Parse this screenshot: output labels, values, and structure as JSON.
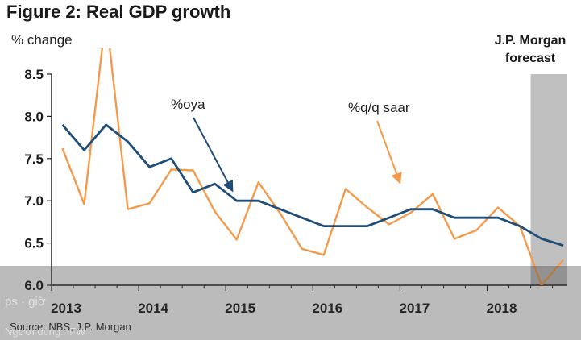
{
  "title": "Figure 2: Real GDP growth",
  "ylabel": "% change",
  "forecast_label": "J.P. Morgan forecast",
  "source": "Source: NBS, J.P. Morgan",
  "overlay_text": "ps · giờ",
  "overlay_text2": "Người dùng: IFW",
  "colors": {
    "oya": "#1f4e79",
    "qoq": "#f39a4c",
    "forecast_band": "#c0c0c0"
  },
  "chart_data": {
    "type": "line",
    "title": "Figure 2: Real GDP growth",
    "ylabel": "% change",
    "xlabel": "",
    "ylim": [
      6.0,
      8.5
    ],
    "yticks": [
      6.0,
      6.5,
      7.0,
      7.5,
      8.0,
      8.5
    ],
    "xlim": [
      2013.0,
      2018.92
    ],
    "xticks": [
      {
        "value": 2013.0,
        "label": "2013"
      },
      {
        "value": 2014.0,
        "label": "2014"
      },
      {
        "value": 2015.0,
        "label": "2015"
      },
      {
        "value": 2016.0,
        "label": "2016"
      },
      {
        "value": 2017.0,
        "label": "2017"
      },
      {
        "value": 2018.0,
        "label": "2018"
      }
    ],
    "forecast_range": [
      2018.5,
      2018.92
    ],
    "grid": false,
    "series": [
      {
        "name": "%oya",
        "annotation": "%oya",
        "x": [
          2013.125,
          2013.375,
          2013.625,
          2013.875,
          2014.125,
          2014.375,
          2014.625,
          2014.875,
          2015.125,
          2015.375,
          2015.625,
          2015.875,
          2016.125,
          2016.375,
          2016.625,
          2016.875,
          2017.125,
          2017.375,
          2017.625,
          2017.875,
          2018.125,
          2018.375,
          2018.625,
          2018.875
        ],
        "y": [
          7.9,
          7.6,
          7.9,
          7.7,
          7.4,
          7.5,
          7.1,
          7.2,
          7.0,
          7.0,
          6.9,
          6.8,
          6.7,
          6.7,
          6.7,
          6.8,
          6.9,
          6.9,
          6.8,
          6.8,
          6.8,
          6.7,
          6.55,
          6.47
        ]
      },
      {
        "name": "%q/q saar",
        "annotation": "%q/q saar",
        "x": [
          2013.125,
          2013.375,
          2013.625,
          2013.875,
          2014.125,
          2014.375,
          2014.625,
          2014.875,
          2015.125,
          2015.375,
          2015.625,
          2015.875,
          2016.125,
          2016.375,
          2016.625,
          2016.875,
          2017.125,
          2017.375,
          2017.625,
          2017.875,
          2018.125,
          2018.375,
          2018.625,
          2018.875
        ],
        "y": [
          7.62,
          6.96,
          9.2,
          6.9,
          6.97,
          7.37,
          7.36,
          6.87,
          6.54,
          7.22,
          6.85,
          6.43,
          6.36,
          7.14,
          6.92,
          6.72,
          6.86,
          7.08,
          6.55,
          6.65,
          6.92,
          6.7,
          6.0,
          6.3
        ]
      }
    ]
  }
}
